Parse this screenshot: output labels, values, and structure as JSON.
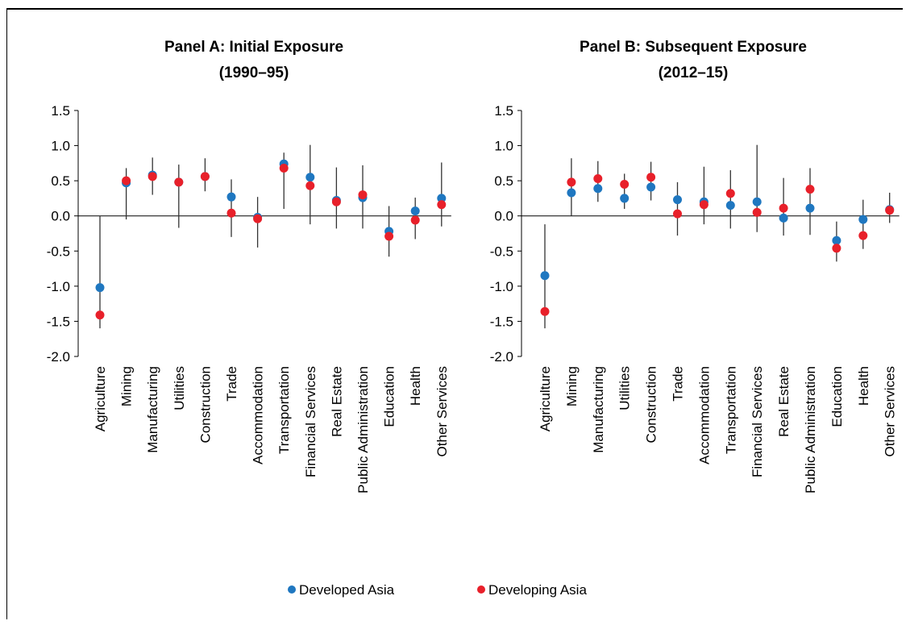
{
  "legend": [
    {
      "name": "Developed Asia",
      "color": "#1f77c0"
    },
    {
      "name": "Developing Asia",
      "color": "#e8202a"
    }
  ],
  "chart_data": [
    {
      "type": "scatter",
      "title_line1": "Panel A: Initial Exposure",
      "title_line2": "(1990–95)",
      "ylim": [
        -2.0,
        1.5
      ],
      "yticks": [
        "1.5",
        "1.0",
        "0.5",
        "0.0",
        "-0.5",
        "-1.0",
        "-1.5",
        "-2.0"
      ],
      "categories": [
        "Agriculture",
        "Mining",
        "Manufacturing",
        "Utilities",
        "Construction",
        "Trade",
        "Accommodation",
        "Transportation",
        "Financial Services",
        "Real Estate",
        "Public Administration",
        "Education",
        "Health",
        "Other Services"
      ],
      "ranges": [
        [
          -1.6,
          0.0
        ],
        [
          -0.05,
          0.68
        ],
        [
          0.3,
          0.83
        ],
        [
          -0.17,
          0.73
        ],
        [
          0.35,
          0.82
        ],
        [
          -0.3,
          0.52
        ],
        [
          -0.45,
          0.27
        ],
        [
          0.1,
          0.9
        ],
        [
          -0.12,
          1.01
        ],
        [
          -0.18,
          0.69
        ],
        [
          -0.18,
          0.72
        ],
        [
          -0.58,
          0.14
        ],
        [
          -0.33,
          0.26
        ],
        [
          -0.15,
          0.76
        ]
      ],
      "series": [
        {
          "name": "Developed Asia",
          "values": [
            -1.02,
            0.47,
            0.58,
            0.48,
            0.56,
            0.27,
            -0.02,
            0.74,
            0.55,
            0.22,
            0.26,
            -0.22,
            0.07,
            0.25
          ]
        },
        {
          "name": "Developing Asia",
          "values": [
            -1.41,
            0.5,
            0.56,
            0.48,
            0.56,
            0.04,
            -0.04,
            0.68,
            0.43,
            0.2,
            0.3,
            -0.29,
            -0.06,
            0.16
          ]
        }
      ]
    },
    {
      "type": "scatter",
      "title_line1": "Panel B: Subsequent Exposure",
      "title_line2": "(2012–15)",
      "ylim": [
        -2.0,
        1.5
      ],
      "yticks": [
        "1.5",
        "1.0",
        "0.5",
        "0.0",
        "-0.5",
        "-1.0",
        "-1.5",
        "-2.0"
      ],
      "categories": [
        "Agriculture",
        "Mining",
        "Manufacturing",
        "Utilities",
        "Construction",
        "Trade",
        "Accommodation",
        "Transportation",
        "Financial Services",
        "Real Estate",
        "Public Administration",
        "Education",
        "Health",
        "Other Services"
      ],
      "ranges": [
        [
          -1.6,
          -0.12
        ],
        [
          0.0,
          0.82
        ],
        [
          0.2,
          0.78
        ],
        [
          0.1,
          0.6
        ],
        [
          0.22,
          0.77
        ],
        [
          -0.28,
          0.48
        ],
        [
          -0.12,
          0.7
        ],
        [
          -0.18,
          0.65
        ],
        [
          -0.23,
          1.01
        ],
        [
          -0.28,
          0.54
        ],
        [
          -0.27,
          0.68
        ],
        [
          -0.65,
          -0.08
        ],
        [
          -0.47,
          0.23
        ],
        [
          -0.1,
          0.33
        ]
      ],
      "series": [
        {
          "name": "Developed Asia",
          "values": [
            -0.85,
            0.33,
            0.39,
            0.25,
            0.41,
            0.23,
            0.2,
            0.15,
            0.2,
            -0.03,
            0.11,
            -0.35,
            -0.05,
            0.09
          ]
        },
        {
          "name": "Developing Asia",
          "values": [
            -1.36,
            0.48,
            0.53,
            0.45,
            0.55,
            0.03,
            0.16,
            0.32,
            0.05,
            0.11,
            0.38,
            -0.46,
            -0.28,
            0.08
          ]
        }
      ]
    }
  ]
}
